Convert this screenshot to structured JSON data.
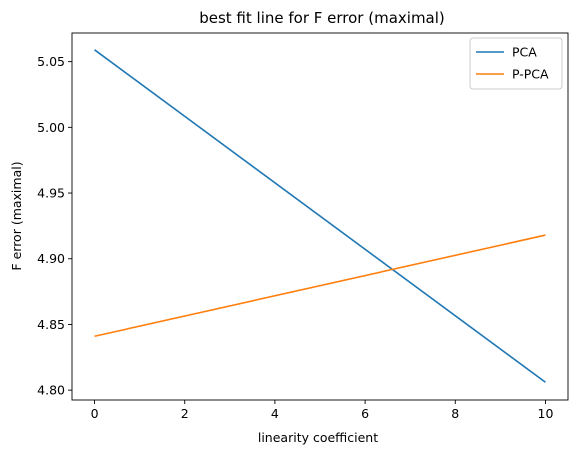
{
  "chart_data": {
    "type": "line",
    "title": "best fit line for F error (maximal)",
    "xlabel": "linearity coefficient",
    "ylabel": "F error (maximal)",
    "xlim": [
      -0.5,
      10.5
    ],
    "ylim": [
      4.7925,
      5.0718
    ],
    "xticks": [
      0,
      2,
      4,
      6,
      8,
      10
    ],
    "xtick_labels": [
      "0",
      "2",
      "4",
      "6",
      "8",
      "10"
    ],
    "yticks": [
      4.8,
      4.85,
      4.9,
      4.95,
      5.0,
      5.05
    ],
    "ytick_labels": [
      "4.80",
      "4.85",
      "4.90",
      "4.95",
      "5.00",
      "5.05"
    ],
    "grid": false,
    "legend_position": "top-right",
    "series": [
      {
        "name": "PCA",
        "color": "#1f77b4",
        "x": [
          0,
          10
        ],
        "y": [
          5.059,
          4.806
        ]
      },
      {
        "name": "P-PCA",
        "color": "#ff7f0e",
        "x": [
          0,
          10
        ],
        "y": [
          4.841,
          4.918
        ]
      }
    ]
  }
}
